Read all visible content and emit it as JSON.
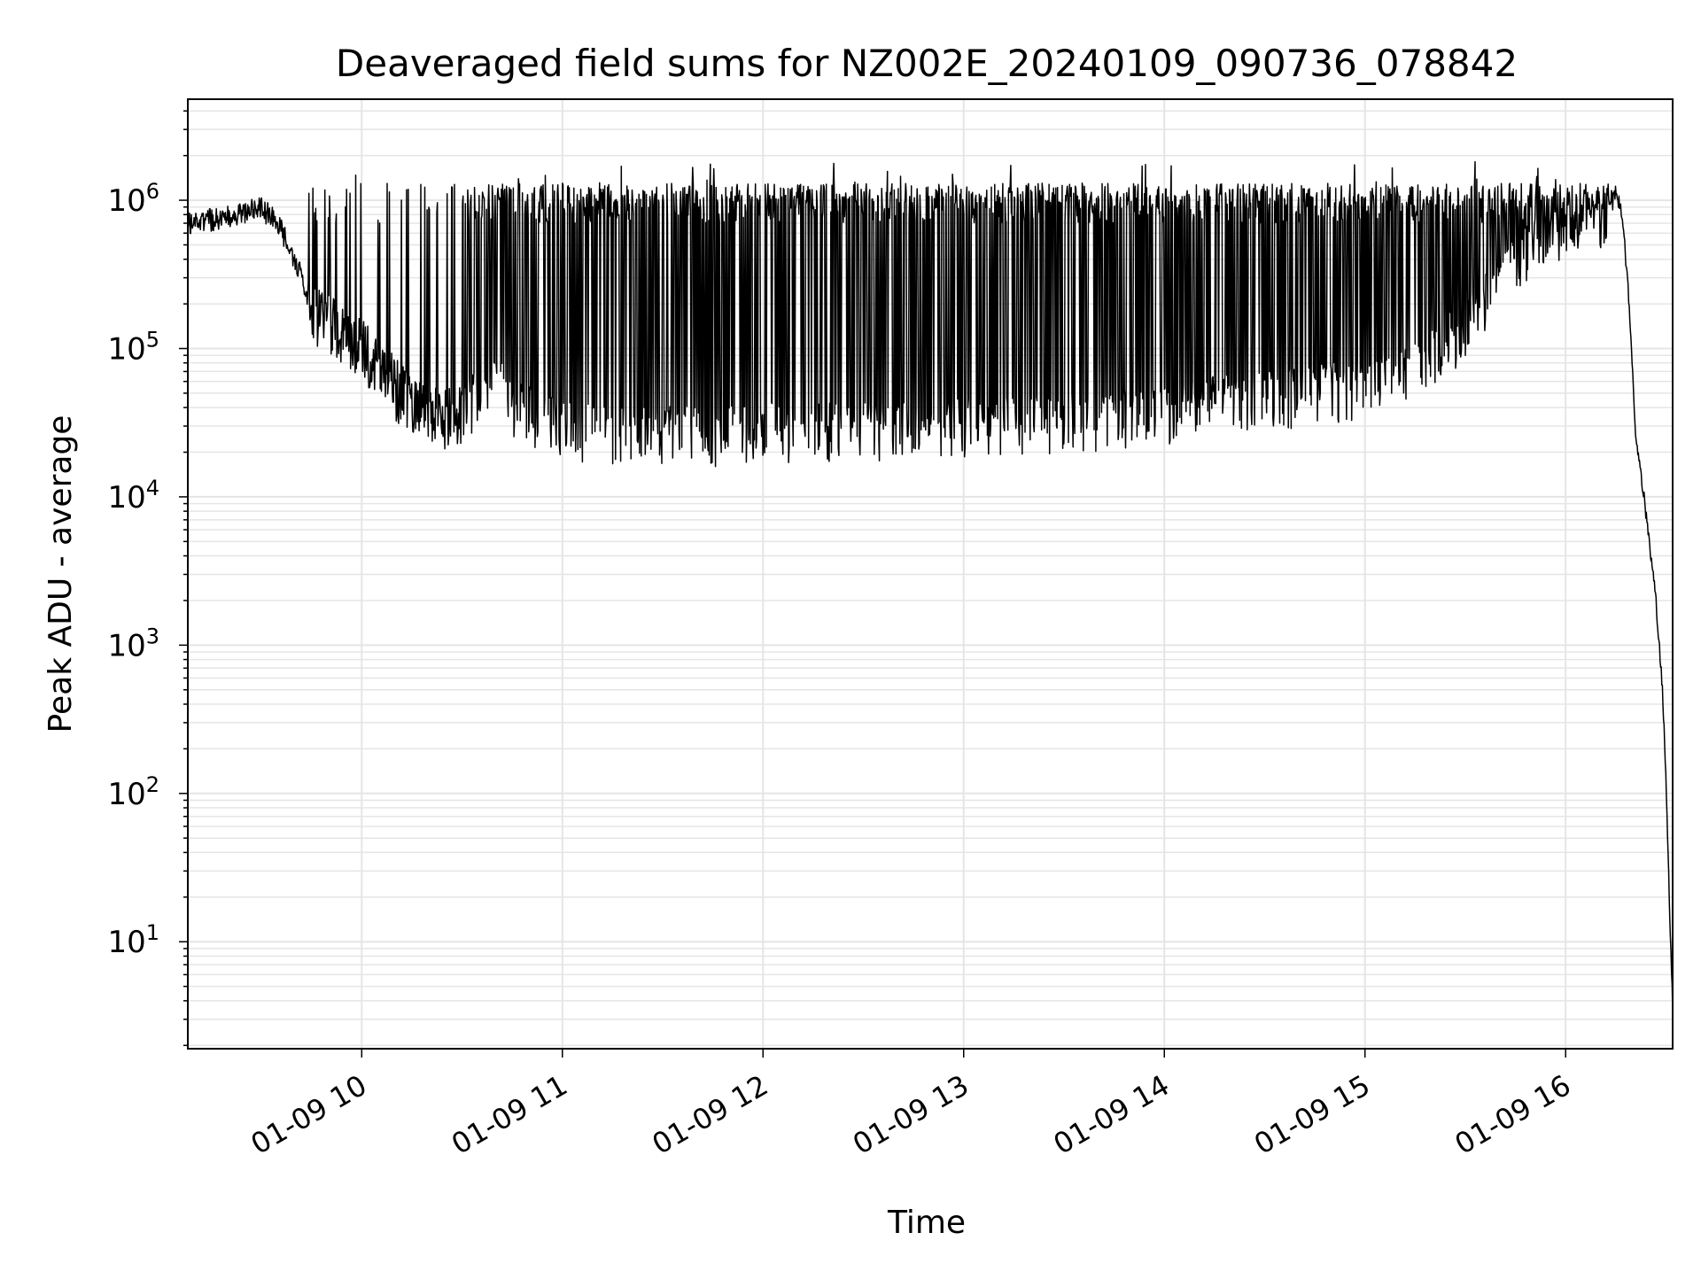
{
  "chart_data": {
    "type": "line",
    "title": "Deaveraged field sums for NZ002E_20240109_090736_078842",
    "xlabel": "Time",
    "ylabel": "Peak ADU - average",
    "yscale": "log",
    "ylim": [
      1.9,
      4800000
    ],
    "xlim": [
      "2024-01-09 09:08:00",
      "2024-01-09 16:32:00"
    ],
    "grid": true,
    "legend": "none",
    "line_color": "#000000",
    "grid_color": "#e5e5e5",
    "x_ticks": [
      "01-09 10",
      "01-09 11",
      "01-09 12",
      "01-09 13",
      "01-09 14",
      "01-09 15",
      "01-09 16"
    ],
    "y_ticks": [
      {
        "value": 10,
        "label": "10",
        "exp": "1"
      },
      {
        "value": 100,
        "label": "10",
        "exp": "2"
      },
      {
        "value": 1000,
        "label": "10",
        "exp": "3"
      },
      {
        "value": 10000,
        "label": "10",
        "exp": "4"
      },
      {
        "value": 100000,
        "label": "10",
        "exp": "5"
      },
      {
        "value": 1000000,
        "label": "10",
        "exp": "6"
      }
    ],
    "series": [
      {
        "x": [
          "2024-01-09 09:08:00",
          "2024-01-09 09:15:00",
          "2024-01-09 09:20:00",
          "2024-01-09 09:25:00",
          "2024-01-09 09:30:00",
          "2024-01-09 09:35:00",
          "2024-01-09 09:40:00",
          "2024-01-09 09:45:00",
          "2024-01-09 09:50:00",
          "2024-01-09 09:55:00",
          "2024-01-09 10:00:00",
          "2024-01-09 10:05:00",
          "2024-01-09 10:10:00",
          "2024-01-09 10:15:00",
          "2024-01-09 10:20:00",
          "2024-01-09 10:25:00",
          "2024-01-09 10:30:00",
          "2024-01-09 10:35:00",
          "2024-01-09 10:40:00",
          "2024-01-09 10:45:00",
          "2024-01-09 10:50:00",
          "2024-01-09 11:00:00",
          "2024-01-09 11:30:00",
          "2024-01-09 12:00:00",
          "2024-01-09 12:30:00",
          "2024-01-09 13:00:00",
          "2024-01-09 13:30:00",
          "2024-01-09 14:00:00",
          "2024-01-09 14:30:00",
          "2024-01-09 15:00:00",
          "2024-01-09 15:15:00",
          "2024-01-09 15:30:00",
          "2024-01-09 15:40:00",
          "2024-01-09 15:50:00",
          "2024-01-09 16:00:00",
          "2024-01-09 16:08:00",
          "2024-01-09 16:12:00",
          "2024-01-09 16:15:00",
          "2024-01-09 16:17:00",
          "2024-01-09 16:19:00",
          "2024-01-09 16:21:00",
          "2024-01-09 16:23:00",
          "2024-01-09 16:25:00",
          "2024-01-09 16:27:00",
          "2024-01-09 16:29:00",
          "2024-01-09 16:30:00",
          "2024-01-09 16:31:00",
          "2024-01-09 16:32:00"
        ],
        "y": [
          700000,
          750000,
          800000,
          850000,
          900000,
          700000,
          400000,
          200000,
          160000,
          140000,
          110000,
          85000,
          60000,
          45000,
          40000,
          38000,
          40000,
          55000,
          65000,
          45000,
          40000,
          30000,
          28000,
          30000,
          30000,
          32000,
          35000,
          40000,
          50000,
          60000,
          80000,
          150000,
          300000,
          500000,
          650000,
          750000,
          900000,
          1100000,
          800000,
          200000,
          25000,
          12000,
          5000,
          2000,
          500,
          120,
          20,
          3.5
        ]
      }
    ]
  }
}
